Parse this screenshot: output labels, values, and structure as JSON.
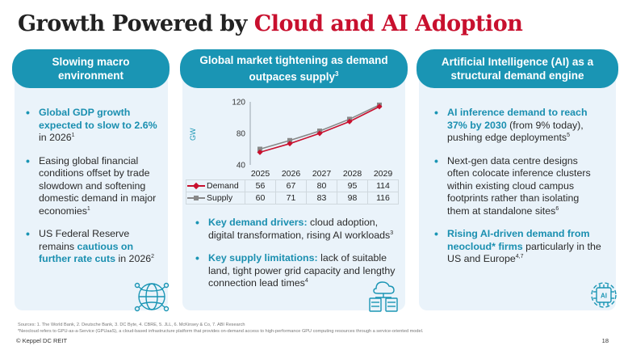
{
  "title": {
    "part1": "Growth Powered by ",
    "part2": "Cloud and AI Adoption"
  },
  "colors": {
    "accent": "#1a95b4",
    "brand_red": "#c8102e",
    "panel_bg": "#eaf3fa",
    "supply_gray": "#888888"
  },
  "panels": {
    "left": {
      "header": "Slowing macro environment",
      "b1_hl": "Global GDP growth expected to slow to 2.6%",
      "b1_rest": " in 2026",
      "b1_sup": "1",
      "b2_text": "Easing global financial conditions offset by trade slowdown and softening domestic demand in major economies",
      "b2_sup": "1",
      "b3_pre": "US Federal Reserve remains ",
      "b3_hl": "cautious on further rate cuts",
      "b3_post": " in 2026",
      "b3_sup": "2",
      "icon": "globe-network-icon"
    },
    "middle": {
      "header": "Global market tightening as demand outpaces supply",
      "header_sup": "3",
      "b1_hl": "Key demand drivers:",
      "b1_rest": " cloud adoption, digital transformation, rising AI workloads",
      "b1_sup": "3",
      "b2_hl": "Key supply limitations:",
      "b2_rest": " lack of suitable land, tight power grid capacity and lengthy connection lead times",
      "b2_sup": "4",
      "icon": "cloud-server-icon"
    },
    "right": {
      "header": "Artificial Intelligence (AI) as a structural demand engine",
      "b1_hl": "AI inference demand to reach 37% by 2030",
      "b1_rest": " (from 9% today), pushing edge deployments",
      "b1_sup": "5",
      "b2_text": "Next-gen data centre designs often colocate inference clusters within existing cloud campus footprints rather than isolating them at standalone sites",
      "b2_sup": "6",
      "b3_hl": "Rising AI-driven demand from neocloud* firms",
      "b3_rest": " particularly in the US and Europe",
      "b3_sup": "4,7",
      "icon": "ai-chip-icon",
      "icon_text": "AI"
    }
  },
  "chart_data": {
    "type": "line",
    "x": [
      "2025",
      "2026",
      "2027",
      "2028",
      "2029"
    ],
    "series": [
      {
        "name": "Demand",
        "values": [
          56,
          67,
          80,
          95,
          114
        ],
        "color": "#c8102e",
        "marker": "diamond"
      },
      {
        "name": "Supply",
        "values": [
          60,
          71,
          83,
          98,
          116
        ],
        "color": "#888888",
        "marker": "square"
      }
    ],
    "ylabel": "GW",
    "ylim": [
      40,
      120
    ],
    "yticks": [
      "120",
      "80",
      "40"
    ],
    "grid": false,
    "data_table": true
  },
  "footnotes": {
    "sources": "Sources: 1. The World Bank, 2. Deutsche Bank, 3. DC Byte, 4. CBRE, 5. JLL, 6. McKinsey & Co, 7. ABI Research",
    "neocloud": "*Neocloud refers to GPU-as-a-Service (GPUaaS), a cloud-based infrastructure platform that provides on-demand access to high-performance GPU computing resources through a service-oriented model."
  },
  "footer": {
    "brand": "© Keppel DC REIT",
    "page": "18"
  }
}
